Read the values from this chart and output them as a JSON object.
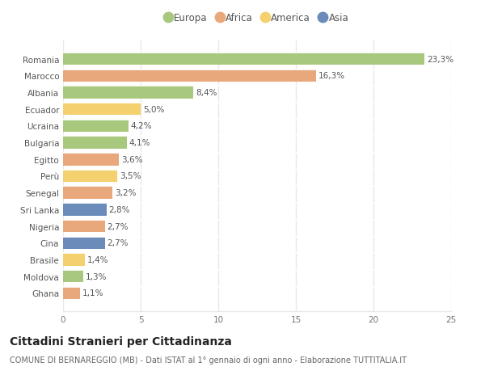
{
  "countries": [
    "Romania",
    "Marocco",
    "Albania",
    "Ecuador",
    "Ucraina",
    "Bulgaria",
    "Egitto",
    "Perù",
    "Senegal",
    "Sri Lanka",
    "Nigeria",
    "Cina",
    "Brasile",
    "Moldova",
    "Ghana"
  ],
  "values": [
    23.3,
    16.3,
    8.4,
    5.0,
    4.2,
    4.1,
    3.6,
    3.5,
    3.2,
    2.8,
    2.7,
    2.7,
    1.4,
    1.3,
    1.1
  ],
  "labels": [
    "23,3%",
    "16,3%",
    "8,4%",
    "5,0%",
    "4,2%",
    "4,1%",
    "3,6%",
    "3,5%",
    "3,2%",
    "2,8%",
    "2,7%",
    "2,7%",
    "1,4%",
    "1,3%",
    "1,1%"
  ],
  "continents": [
    "Europa",
    "Africa",
    "Europa",
    "America",
    "Europa",
    "Europa",
    "Africa",
    "America",
    "Africa",
    "Asia",
    "Africa",
    "Asia",
    "America",
    "Europa",
    "Africa"
  ],
  "continent_colors": {
    "Europa": "#a8c87e",
    "Africa": "#e8a87c",
    "America": "#f5d06e",
    "Asia": "#6b8cba"
  },
  "legend_order": [
    "Europa",
    "Africa",
    "America",
    "Asia"
  ],
  "title": "Cittadini Stranieri per Cittadinanza",
  "subtitle": "COMUNE DI BERNAREGGIO (MB) - Dati ISTAT al 1° gennaio di ogni anno - Elaborazione TUTTITALIA.IT",
  "xlim": [
    0,
    25
  ],
  "xticks": [
    0,
    5,
    10,
    15,
    20,
    25
  ],
  "background_color": "#ffffff",
  "grid_color": "#e8e8e8",
  "title_fontsize": 10,
  "subtitle_fontsize": 7,
  "label_fontsize": 7.5,
  "tick_fontsize": 7.5,
  "legend_fontsize": 8.5
}
